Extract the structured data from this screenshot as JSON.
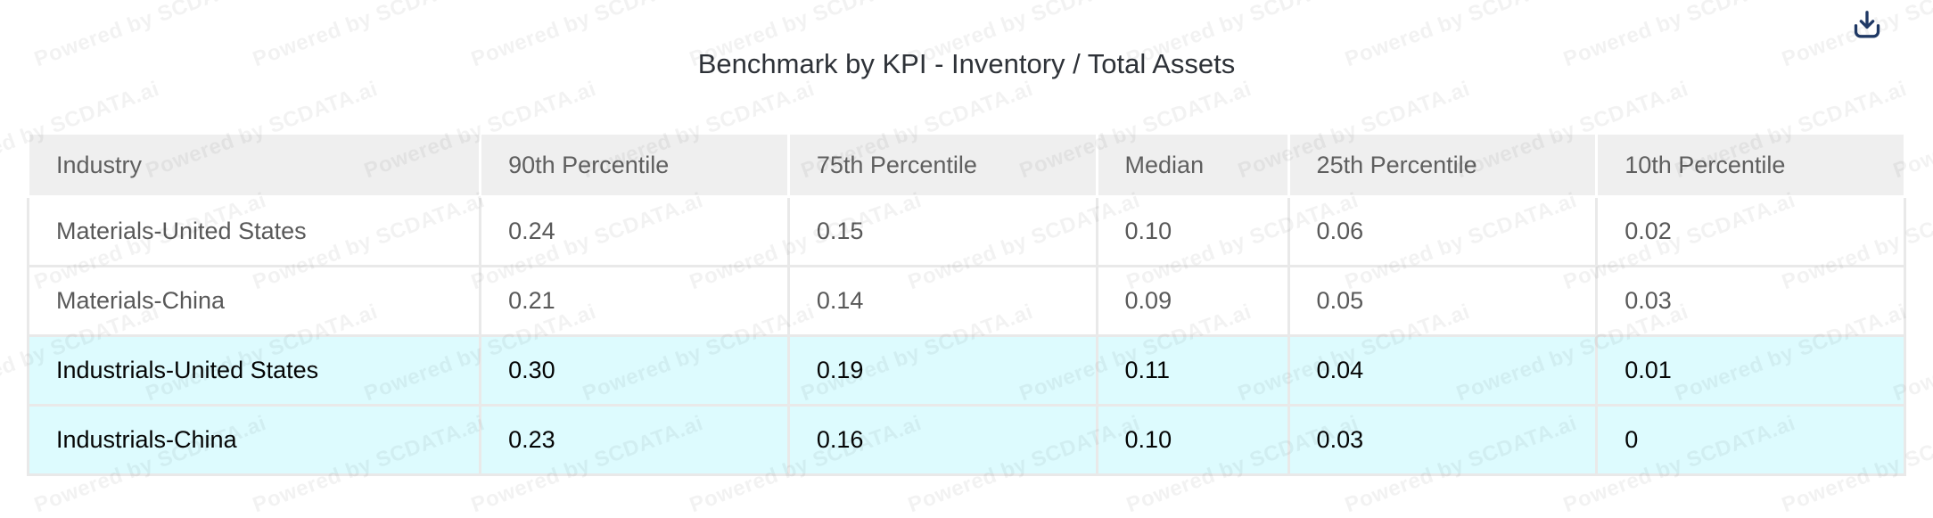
{
  "title": "Benchmark by KPI - Inventory / Total Assets",
  "toolbar": {
    "download_icon": "tray-arrow-down"
  },
  "watermark": {
    "text": "Powered by SCDATA.ai"
  },
  "colors": {
    "header_bg": "#efefef",
    "grid_line": "#e9e9e9",
    "highlight_row_bg": "#ddfbfe",
    "header_text": "#5f5f5f",
    "body_text": "#595959",
    "highlight_text": "#050505",
    "title_text": "#2e3238",
    "download_icon": "#1f3864"
  },
  "chart_data": {
    "type": "table",
    "title": "Benchmark by KPI - Inventory / Total Assets",
    "columns": [
      "Industry",
      "90th Percentile",
      "75th Percentile",
      "Median",
      "25th Percentile",
      "10th Percentile"
    ],
    "rows": [
      {
        "label": "Materials-United States",
        "values": [
          "0.24",
          "0.15",
          "0.10",
          "0.06",
          "0.02"
        ],
        "highlighted": false
      },
      {
        "label": "Materials-China",
        "values": [
          "0.21",
          "0.14",
          "0.09",
          "0.05",
          "0.03"
        ],
        "highlighted": false
      },
      {
        "label": "Industrials-United States",
        "values": [
          "0.30",
          "0.19",
          "0.11",
          "0.04",
          "0.01"
        ],
        "highlighted": true
      },
      {
        "label": "Industrials-China",
        "values": [
          "0.23",
          "0.16",
          "0.10",
          "0.03",
          "0"
        ],
        "highlighted": true
      }
    ]
  }
}
